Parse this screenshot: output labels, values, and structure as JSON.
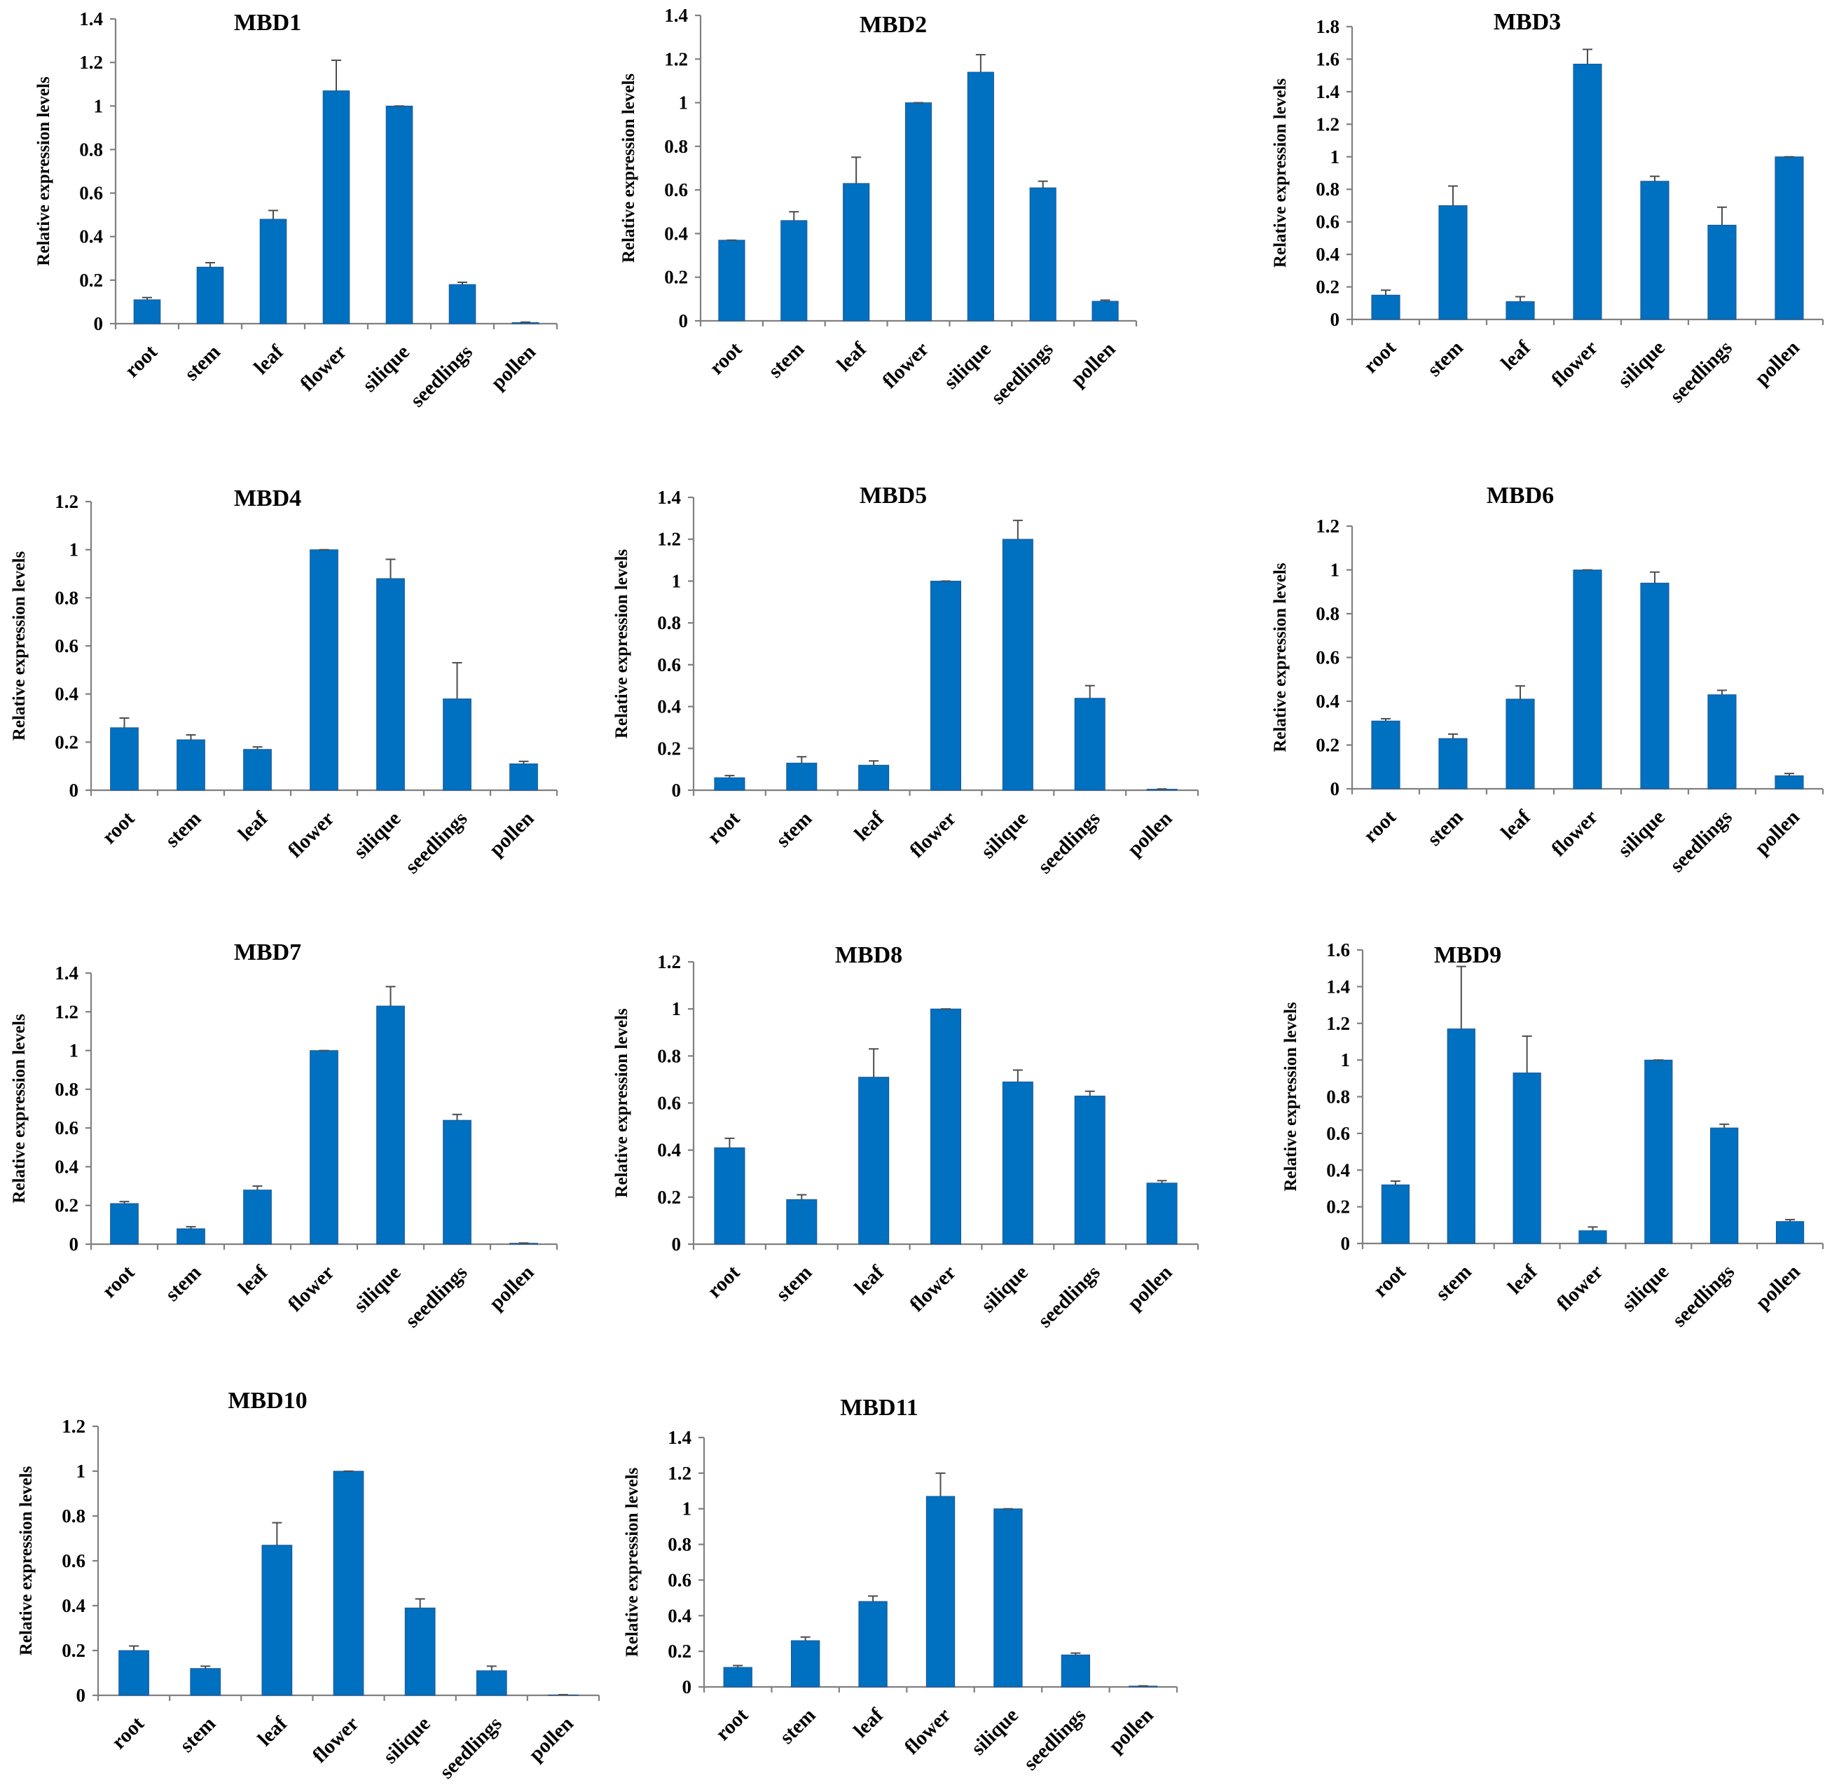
{
  "chart_data": [
    {
      "type": "bar",
      "title": "MBD1",
      "ylabel": "Relative expression levels",
      "ylim": [
        0,
        1.4
      ],
      "yticks": [
        "0",
        "0.2",
        "0.4",
        "0.6",
        "0.8",
        "1",
        "1.2",
        "1.4"
      ],
      "categories": [
        "root",
        "stem",
        "leaf",
        "flower",
        "silique",
        "seedlings",
        "pollen"
      ],
      "values": [
        0.11,
        0.26,
        0.48,
        1.07,
        1.0,
        0.18,
        0.005
      ],
      "errors": [
        0.01,
        0.02,
        0.04,
        0.14,
        0.0,
        0.01,
        0.002
      ]
    },
    {
      "type": "bar",
      "title": "MBD2",
      "ylabel": "Relative expression levels",
      "ylim": [
        0,
        1.4
      ],
      "yticks": [
        "0",
        "0.2",
        "0.4",
        "0.6",
        "0.8",
        "1",
        "1.2",
        "1.4"
      ],
      "categories": [
        "root",
        "stem",
        "leaf",
        "flower",
        "silique",
        "seedlings",
        "pollen"
      ],
      "values": [
        0.37,
        0.46,
        0.63,
        1.0,
        1.14,
        0.61,
        0.09
      ],
      "errors": [
        0.0,
        0.04,
        0.12,
        0.0,
        0.08,
        0.03,
        0.005
      ]
    },
    {
      "type": "bar",
      "title": "MBD3",
      "ylabel": "Relative expression levels",
      "ylim": [
        0,
        1.8
      ],
      "yticks": [
        "0",
        "0.2",
        "0.4",
        "0.6",
        "0.8",
        "1",
        "1.2",
        "1.4",
        "1.6",
        "1.8"
      ],
      "categories": [
        "root",
        "stem",
        "leaf",
        "flower",
        "silique",
        "seedlings",
        "pollen"
      ],
      "values": [
        0.15,
        0.7,
        0.11,
        1.57,
        0.85,
        0.58,
        1.0
      ],
      "errors": [
        0.03,
        0.12,
        0.03,
        0.09,
        0.03,
        0.11,
        0.0
      ]
    },
    {
      "type": "bar",
      "title": "MBD4",
      "ylabel": "Relative expression levels",
      "ylim": [
        0,
        1.2
      ],
      "yticks": [
        "0",
        "0.2",
        "0.4",
        "0.6",
        "0.8",
        "1",
        "1.2"
      ],
      "categories": [
        "root",
        "stem",
        "leaf",
        "flower",
        "silique",
        "seedlings",
        "pollen"
      ],
      "values": [
        0.26,
        0.21,
        0.17,
        1.0,
        0.88,
        0.38,
        0.11
      ],
      "errors": [
        0.04,
        0.02,
        0.01,
        0.0,
        0.08,
        0.15,
        0.01
      ]
    },
    {
      "type": "bar",
      "title": "MBD5",
      "ylabel": "Relative expression levels",
      "ylim": [
        0,
        1.4
      ],
      "yticks": [
        "0",
        "0.2",
        "0.4",
        "0.6",
        "0.8",
        "1",
        "1.2",
        "1.4"
      ],
      "categories": [
        "root",
        "stem",
        "leaf",
        "flower",
        "silique",
        "seedlings",
        "pollen"
      ],
      "values": [
        0.06,
        0.13,
        0.12,
        1.0,
        1.2,
        0.44,
        0.005
      ],
      "errors": [
        0.01,
        0.03,
        0.02,
        0.0,
        0.09,
        0.06,
        0.001
      ]
    },
    {
      "type": "bar",
      "title": "MBD6",
      "ylabel": "Relative expression levels",
      "ylim": [
        0,
        1.2
      ],
      "yticks": [
        "0",
        "0.2",
        "0.4",
        "0.6",
        "0.8",
        "1",
        "1.2"
      ],
      "categories": [
        "root",
        "stem",
        "leaf",
        "flower",
        "silique",
        "seedlings",
        "pollen"
      ],
      "values": [
        0.31,
        0.23,
        0.41,
        1.0,
        0.94,
        0.43,
        0.06
      ],
      "errors": [
        0.01,
        0.02,
        0.06,
        0.0,
        0.05,
        0.02,
        0.01
      ]
    },
    {
      "type": "bar",
      "title": "MBD7",
      "ylabel": "Relative expression levels",
      "ylim": [
        0,
        1.4
      ],
      "yticks": [
        "0",
        "0.2",
        "0.4",
        "0.6",
        "0.8",
        "1",
        "1.2",
        "1.4"
      ],
      "categories": [
        "root",
        "stem",
        "leaf",
        "flower",
        "silique",
        "seedlings",
        "pollen"
      ],
      "values": [
        0.21,
        0.08,
        0.28,
        1.0,
        1.23,
        0.64,
        0.005
      ],
      "errors": [
        0.01,
        0.01,
        0.02,
        0.0,
        0.1,
        0.03,
        0.001
      ]
    },
    {
      "type": "bar",
      "title": "MBD8",
      "ylabel": "Relative expression levels",
      "ylim": [
        0,
        1.2
      ],
      "yticks": [
        "0",
        "0.2",
        "0.4",
        "0.6",
        "0.8",
        "1",
        "1.2"
      ],
      "categories": [
        "root",
        "stem",
        "leaf",
        "flower",
        "silique",
        "seedlings",
        "pollen"
      ],
      "values": [
        0.41,
        0.19,
        0.71,
        1.0,
        0.69,
        0.63,
        0.26
      ],
      "errors": [
        0.04,
        0.02,
        0.12,
        0.0,
        0.05,
        0.02,
        0.01
      ]
    },
    {
      "type": "bar",
      "title": "MBD9",
      "ylabel": "Relative expression levels",
      "ylim": [
        0,
        1.6
      ],
      "yticks": [
        "0",
        "0.2",
        "0.4",
        "0.6",
        "0.8",
        "1",
        "1.2",
        "1.4",
        "1.6"
      ],
      "categories": [
        "root",
        "stem",
        "leaf",
        "flower",
        "silique",
        "seedlings",
        "pollen"
      ],
      "values": [
        0.32,
        1.17,
        0.93,
        0.07,
        1.0,
        0.63,
        0.12
      ],
      "errors": [
        0.02,
        0.34,
        0.2,
        0.02,
        0.0,
        0.02,
        0.01
      ]
    },
    {
      "type": "bar",
      "title": "MBD10",
      "ylabel": "Relative expression levels",
      "ylim": [
        0,
        1.2
      ],
      "yticks": [
        "0",
        "0.2",
        "0.4",
        "0.6",
        "0.8",
        "1",
        "1.2"
      ],
      "categories": [
        "root",
        "stem",
        "leaf",
        "flower",
        "silique",
        "seedlings",
        "pollen"
      ],
      "values": [
        0.2,
        0.12,
        0.67,
        1.0,
        0.39,
        0.11,
        0.002
      ],
      "errors": [
        0.02,
        0.01,
        0.1,
        0.0,
        0.04,
        0.02,
        0.001
      ]
    },
    {
      "type": "bar",
      "title": "MBD11",
      "ylabel": "Relative expression levels",
      "ylim": [
        0,
        1.4
      ],
      "yticks": [
        "0",
        "0.2",
        "0.4",
        "0.6",
        "0.8",
        "1",
        "1.2",
        "1.4"
      ],
      "categories": [
        "root",
        "stem",
        "leaf",
        "flower",
        "silique",
        "seedlings",
        "pollen"
      ],
      "values": [
        0.11,
        0.26,
        0.48,
        1.07,
        1.0,
        0.18,
        0.005
      ],
      "errors": [
        0.01,
        0.02,
        0.03,
        0.13,
        0.0,
        0.01,
        0.001
      ]
    }
  ]
}
